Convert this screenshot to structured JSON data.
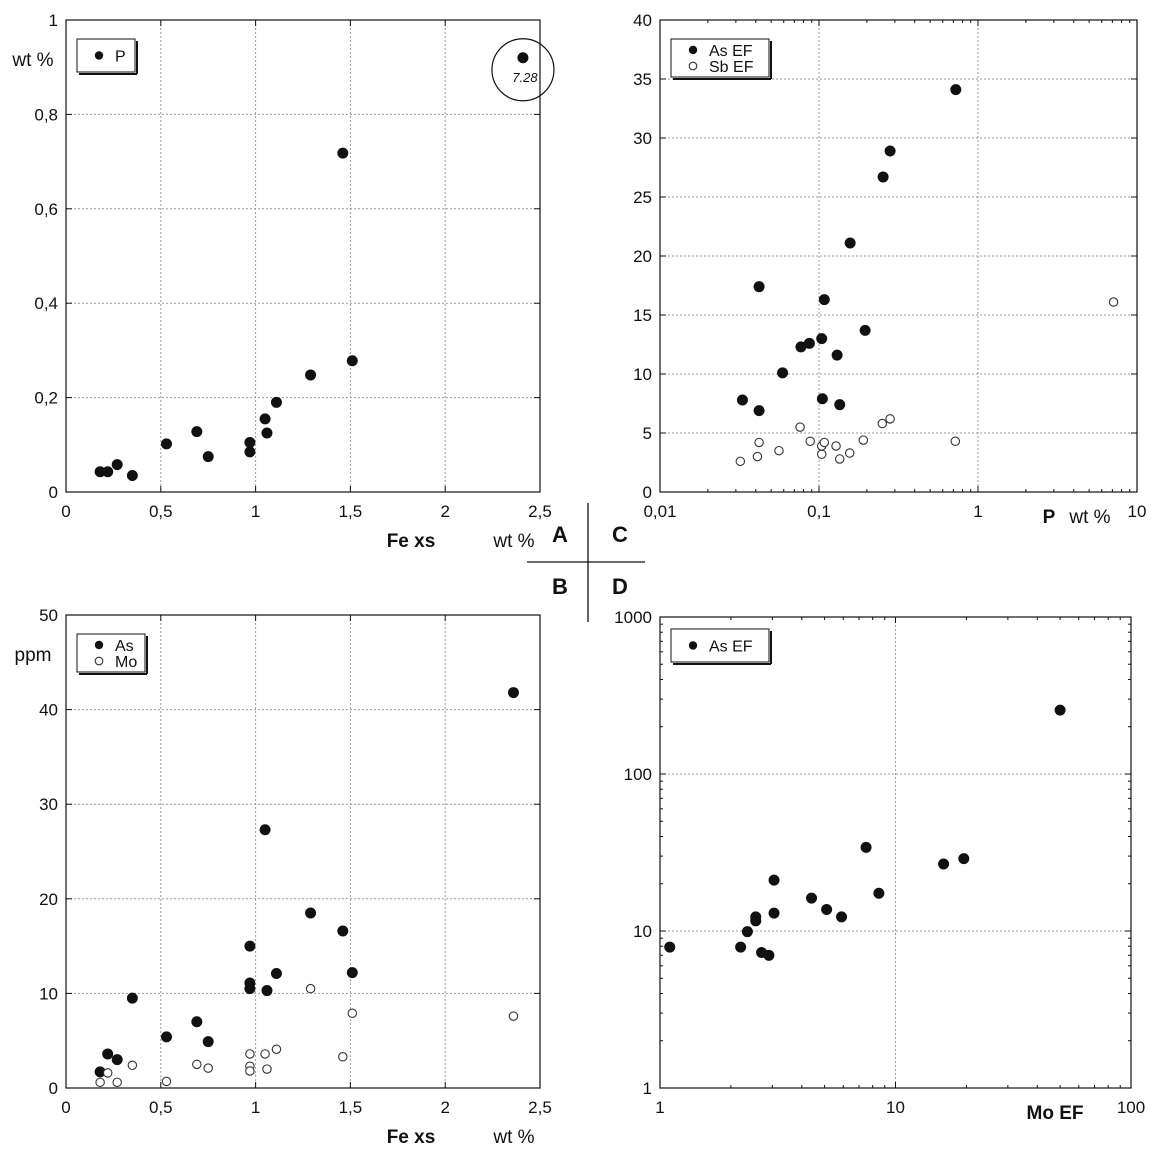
{
  "panel_letters": [
    "A",
    "C",
    "B",
    "D"
  ],
  "chart_data": [
    {
      "id": "A",
      "type": "scatter",
      "x_scale": "linear",
      "y_scale": "linear",
      "xlim": [
        0,
        2.5
      ],
      "ylim": [
        0,
        1
      ],
      "x_ticks": [
        0,
        0.5,
        1,
        1.5,
        2,
        2.5
      ],
      "x_tick_labels": [
        "0",
        "0,5",
        "1",
        "1,5",
        "2",
        "2,5"
      ],
      "y_ticks": [
        0,
        0.2,
        0.4,
        0.6,
        0.8,
        1
      ],
      "y_tick_labels": [
        "0",
        "0,2",
        "0,4",
        "0,6",
        "0,8",
        "1"
      ],
      "xlabel": "Fe xs",
      "x_unit": "wt %",
      "y_unit": "wt %",
      "grid": true,
      "legend_position": "top-left",
      "annotation": "7.28",
      "series": [
        {
          "name": "P",
          "marker": "filled",
          "points": [
            [
              0.18,
              0.043
            ],
            [
              0.22,
              0.043
            ],
            [
              0.27,
              0.058
            ],
            [
              0.35,
              0.035
            ],
            [
              0.53,
              0.102
            ],
            [
              0.69,
              0.128
            ],
            [
              0.75,
              0.075
            ],
            [
              0.97,
              0.105
            ],
            [
              0.97,
              0.085
            ],
            [
              1.05,
              0.155
            ],
            [
              1.06,
              0.125
            ],
            [
              1.11,
              0.19
            ],
            [
              1.29,
              0.248
            ],
            [
              1.46,
              0.718
            ],
            [
              1.51,
              0.278
            ],
            [
              2.41,
              0.92
            ]
          ]
        }
      ]
    },
    {
      "id": "C",
      "type": "scatter",
      "x_scale": "log",
      "y_scale": "linear",
      "xlim": [
        0.01,
        10
      ],
      "ylim": [
        0,
        40
      ],
      "x_ticks": [
        0.01,
        0.1,
        1,
        10
      ],
      "x_tick_labels": [
        "0,01",
        "0,1",
        "1",
        "10"
      ],
      "y_ticks": [
        0,
        5,
        10,
        15,
        20,
        25,
        30,
        35,
        40
      ],
      "y_tick_labels": [
        "0",
        "5",
        "10",
        "15",
        "20",
        "25",
        "30",
        "35",
        "40"
      ],
      "xlabel": "P",
      "x_unit": "wt %",
      "grid": true,
      "legend_position": "top-left",
      "series": [
        {
          "name": "As EF",
          "marker": "filled",
          "points": [
            [
              0.033,
              7.8
            ],
            [
              0.042,
              6.9
            ],
            [
              0.042,
              17.4
            ],
            [
              0.059,
              10.1
            ],
            [
              0.077,
              12.3
            ],
            [
              0.087,
              12.6
            ],
            [
              0.104,
              13.0
            ],
            [
              0.105,
              7.9
            ],
            [
              0.108,
              16.3
            ],
            [
              0.13,
              11.6
            ],
            [
              0.135,
              7.4
            ],
            [
              0.157,
              21.1
            ],
            [
              0.195,
              13.7
            ],
            [
              0.253,
              26.7
            ],
            [
              0.28,
              28.9
            ],
            [
              0.725,
              34.1
            ]
          ]
        },
        {
          "name": "Sb EF",
          "marker": "open",
          "points": [
            [
              0.032,
              2.6
            ],
            [
              0.041,
              3.0
            ],
            [
              0.042,
              4.2
            ],
            [
              0.056,
              3.5
            ],
            [
              0.076,
              5.5
            ],
            [
              0.088,
              4.3
            ],
            [
              0.104,
              3.2
            ],
            [
              0.104,
              3.9
            ],
            [
              0.108,
              4.2
            ],
            [
              0.128,
              3.9
            ],
            [
              0.135,
              2.8
            ],
            [
              0.156,
              3.3
            ],
            [
              0.19,
              4.4
            ],
            [
              0.25,
              5.8
            ],
            [
              0.28,
              6.2
            ],
            [
              0.72,
              4.3
            ],
            [
              7.12,
              16.1
            ]
          ]
        }
      ]
    },
    {
      "id": "B",
      "type": "scatter",
      "x_scale": "linear",
      "y_scale": "linear",
      "xlim": [
        0,
        2.5
      ],
      "ylim": [
        0,
        50
      ],
      "x_ticks": [
        0,
        0.5,
        1,
        1.5,
        2,
        2.5
      ],
      "x_tick_labels": [
        "0",
        "0,5",
        "1",
        "1,5",
        "2",
        "2,5"
      ],
      "y_ticks": [
        0,
        10,
        20,
        30,
        40,
        50
      ],
      "y_tick_labels": [
        "0",
        "10",
        "20",
        "30",
        "40",
        "50"
      ],
      "xlabel": "Fe xs",
      "x_unit": "wt %",
      "y_unit": "ppm",
      "grid": true,
      "legend_position": "top-left",
      "series": [
        {
          "name": "As",
          "marker": "filled",
          "points": [
            [
              0.18,
              1.7
            ],
            [
              0.22,
              3.6
            ],
            [
              0.27,
              3.0
            ],
            [
              0.35,
              9.5
            ],
            [
              0.53,
              5.4
            ],
            [
              0.69,
              7.0
            ],
            [
              0.75,
              4.9
            ],
            [
              0.97,
              15.0
            ],
            [
              0.97,
              11.1
            ],
            [
              0.97,
              10.5
            ],
            [
              1.05,
              27.3
            ],
            [
              1.06,
              10.3
            ],
            [
              1.11,
              12.1
            ],
            [
              1.29,
              18.5
            ],
            [
              1.46,
              16.6
            ],
            [
              1.51,
              12.2
            ],
            [
              2.36,
              41.8
            ]
          ]
        },
        {
          "name": "Mo",
          "marker": "open",
          "points": [
            [
              0.18,
              0.6
            ],
            [
              0.22,
              1.6
            ],
            [
              0.27,
              0.6
            ],
            [
              0.35,
              2.4
            ],
            [
              0.53,
              0.7
            ],
            [
              0.69,
              2.5
            ],
            [
              0.75,
              2.1
            ],
            [
              0.97,
              3.6
            ],
            [
              0.97,
              2.3
            ],
            [
              0.97,
              1.8
            ],
            [
              1.05,
              3.6
            ],
            [
              1.06,
              2.0
            ],
            [
              1.11,
              4.1
            ],
            [
              1.29,
              10.5
            ],
            [
              1.46,
              3.3
            ],
            [
              1.51,
              7.9
            ],
            [
              2.36,
              7.6
            ]
          ]
        }
      ]
    },
    {
      "id": "D",
      "type": "scatter",
      "x_scale": "log",
      "y_scale": "log",
      "xlim": [
        1,
        100
      ],
      "ylim": [
        1,
        1000
      ],
      "x_ticks": [
        1,
        10,
        100
      ],
      "x_tick_labels": [
        "1",
        "10",
        "100"
      ],
      "y_ticks": [
        1,
        10,
        100,
        1000
      ],
      "y_tick_labels": [
        "1",
        "10",
        "100",
        "1000"
      ],
      "xlabel": "Mo EF",
      "grid": true,
      "legend_position": "top-left",
      "series": [
        {
          "name": "As EF",
          "marker": "filled",
          "points": [
            [
              1.1,
              7.9
            ],
            [
              2.2,
              7.9
            ],
            [
              2.35,
              9.9
            ],
            [
              2.55,
              11.6
            ],
            [
              2.55,
              12.3
            ],
            [
              2.7,
              7.3
            ],
            [
              2.9,
              7.0
            ],
            [
              3.05,
              13.0
            ],
            [
              3.05,
              21.1
            ],
            [
              4.4,
              16.2
            ],
            [
              5.1,
              13.7
            ],
            [
              5.9,
              12.3
            ],
            [
              7.5,
              34.1
            ],
            [
              8.5,
              17.4
            ],
            [
              16,
              26.7
            ],
            [
              19.5,
              28.9
            ],
            [
              50,
              255
            ]
          ]
        }
      ]
    }
  ]
}
